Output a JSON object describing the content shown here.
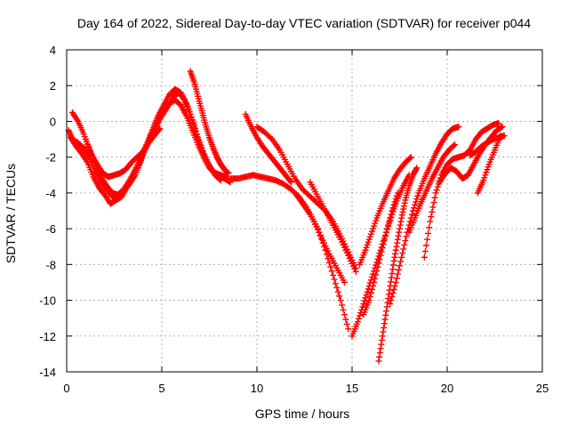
{
  "chart_data": {
    "type": "scatter",
    "title": "Day 164 of 2022, Sidereal Day-to-day VTEC variation (SDTVAR) for receiver p044",
    "xlabel": "GPS time / hours",
    "ylabel": "SDTVAR / TECUs",
    "xlim": [
      0,
      25
    ],
    "ylim": [
      -14,
      4
    ],
    "xticks": [
      0,
      5,
      10,
      15,
      20,
      25
    ],
    "yticks": [
      -14,
      -12,
      -10,
      -8,
      -6,
      -4,
      -2,
      0,
      2,
      4
    ],
    "grid": true,
    "marker": "plus",
    "color": "#ff0000",
    "series": [
      {
        "x": [
          0.1,
          0.3,
          0.6,
          0.9,
          1.2,
          1.5,
          1.8,
          2.1,
          2.4,
          2.7,
          3.0,
          3.3,
          3.6,
          3.9,
          4.2,
          4.5,
          4.8,
          5.1,
          5.4,
          5.7,
          6.0,
          6.3,
          6.6,
          6.9,
          7.2,
          7.5,
          7.8,
          8.1,
          8.4
        ],
        "y": [
          -0.5,
          -1.0,
          -1.2,
          -1.5,
          -2.0,
          -2.8,
          -3.4,
          -3.8,
          -4.2,
          -4.3,
          -3.9,
          -3.5,
          -3.0,
          -2.2,
          -1.3,
          -0.6,
          0.2,
          0.6,
          1.0,
          1.2,
          0.9,
          0.3,
          -0.5,
          -1.3,
          -2.0,
          -2.6,
          -2.9,
          -3.0,
          -3.1
        ]
      },
      {
        "x": [
          0.2,
          0.5,
          0.8,
          1.1,
          1.4,
          1.7,
          2.0,
          2.3,
          2.6,
          2.9,
          3.2,
          3.5,
          3.8,
          4.1,
          4.4,
          4.7,
          5.0,
          5.3,
          5.6,
          5.9,
          6.2,
          6.5,
          6.8,
          7.1,
          7.4,
          7.7,
          8.0,
          8.3,
          8.6
        ],
        "y": [
          -0.9,
          -1.4,
          -1.8,
          -2.3,
          -3.1,
          -3.7,
          -4.1,
          -4.6,
          -4.4,
          -4.2,
          -3.6,
          -3.1,
          -2.4,
          -1.6,
          -1.0,
          -0.3,
          0.3,
          0.8,
          1.4,
          1.6,
          1.2,
          0.4,
          -0.7,
          -1.6,
          -2.3,
          -2.8,
          -3.0,
          -3.2,
          -3.4
        ]
      },
      {
        "x": [
          0.3,
          0.6,
          0.9,
          1.2,
          1.5,
          1.8,
          2.1,
          2.4,
          2.7,
          3.0,
          3.3,
          3.6,
          3.9,
          4.2,
          4.5,
          4.8,
          5.1,
          5.4,
          5.7,
          6.0,
          6.3,
          6.6,
          6.9,
          7.2,
          7.5,
          7.8,
          8.1
        ],
        "y": [
          0.5,
          0.0,
          -0.7,
          -1.6,
          -2.4,
          -3.1,
          -3.6,
          -4.0,
          -4.1,
          -3.8,
          -3.3,
          -2.7,
          -2.1,
          -1.3,
          -0.5,
          0.3,
          0.9,
          1.5,
          1.8,
          1.6,
          1.0,
          0.1,
          -0.9,
          -1.8,
          -2.5,
          -3.0,
          -3.3
        ]
      },
      {
        "x": [
          1.0,
          1.3,
          1.6,
          1.9,
          2.2,
          2.5,
          2.8,
          3.1,
          3.4,
          3.7,
          4.0,
          4.3,
          4.6,
          4.9
        ],
        "y": [
          -1.0,
          -1.8,
          -2.4,
          -2.9,
          -3.1,
          -3.0,
          -2.9,
          -2.7,
          -2.3,
          -2.0,
          -1.7,
          -1.2,
          -0.8,
          -0.4
        ]
      },
      {
        "x": [
          6.5,
          6.7,
          6.9,
          7.1,
          7.3,
          7.5,
          7.7,
          7.9,
          8.1,
          8.3,
          8.5
        ],
        "y": [
          2.8,
          2.2,
          1.4,
          0.6,
          -0.2,
          -0.9,
          -1.5,
          -2.0,
          -2.4,
          -2.7,
          -2.9
        ]
      },
      {
        "x": [
          8.6,
          9.0,
          9.4,
          9.8,
          10.2,
          10.6,
          11.0,
          11.4,
          11.8,
          12.2,
          12.6,
          13.0,
          13.4,
          13.8,
          14.2,
          14.6
        ],
        "y": [
          -3.2,
          -3.2,
          -3.1,
          -3.0,
          -3.1,
          -3.2,
          -3.3,
          -3.5,
          -3.8,
          -4.2,
          -4.8,
          -5.6,
          -6.5,
          -7.4,
          -8.2,
          -9.0
        ]
      },
      {
        "x": [
          9.4,
          9.7,
          10.0,
          10.3,
          10.6,
          10.9,
          11.2,
          11.5,
          11.8
        ],
        "y": [
          0.4,
          -0.3,
          -0.9,
          -1.4,
          -1.8,
          -2.2,
          -2.6,
          -3.0,
          -3.4
        ]
      },
      {
        "x": [
          10.0,
          10.4,
          10.8,
          11.2,
          11.6,
          12.0,
          12.4,
          12.8,
          13.2,
          13.6,
          14.0,
          14.4,
          14.8,
          15.2
        ],
        "y": [
          -0.3,
          -0.6,
          -1.0,
          -1.6,
          -2.4,
          -3.2,
          -3.8,
          -4.2,
          -4.6,
          -5.0,
          -5.6,
          -6.4,
          -7.3,
          -8.2
        ]
      },
      {
        "x": [
          12.0,
          12.4,
          12.8,
          13.2,
          13.6,
          14.0,
          14.4,
          14.8
        ],
        "y": [
          -4.0,
          -4.6,
          -5.2,
          -6.0,
          -7.2,
          -8.6,
          -10.0,
          -11.6
        ]
      },
      {
        "x": [
          12.8,
          13.2,
          13.6,
          14.0,
          14.4,
          14.8,
          15.2
        ],
        "y": [
          -3.4,
          -4.2,
          -5.0,
          -5.8,
          -6.6,
          -7.5,
          -8.4
        ]
      },
      {
        "x": [
          15.0,
          15.3,
          15.6,
          15.9,
          16.2,
          16.5,
          16.8,
          17.1,
          17.4,
          17.7,
          18.0
        ],
        "y": [
          -12.0,
          -11.2,
          -10.2,
          -9.2,
          -8.2,
          -7.2,
          -6.2,
          -5.2,
          -4.3,
          -3.6,
          -3.0
        ]
      },
      {
        "x": [
          15.4,
          15.7,
          16.0,
          16.3,
          16.6,
          16.9,
          17.2,
          17.5,
          17.8,
          18.1
        ],
        "y": [
          -8.0,
          -7.2,
          -6.3,
          -5.4,
          -4.6,
          -3.9,
          -3.2,
          -2.7,
          -2.3,
          -2.0
        ]
      },
      {
        "x": [
          15.6,
          15.9,
          16.2,
          16.5,
          16.8,
          17.1,
          17.4
        ],
        "y": [
          -10.8,
          -10.0,
          -8.8,
          -7.5,
          -6.2,
          -5.0,
          -4.0
        ]
      },
      {
        "x": [
          16.4,
          16.6,
          16.8,
          17.0,
          17.2,
          17.4,
          17.6,
          17.8,
          18.0,
          18.2,
          18.4
        ],
        "y": [
          -13.4,
          -12.0,
          -10.6,
          -9.2,
          -7.8,
          -6.6,
          -5.4,
          -4.4,
          -3.6,
          -3.0,
          -2.6
        ]
      },
      {
        "x": [
          17.0,
          17.3,
          17.6,
          17.9,
          18.2,
          18.5,
          18.8,
          19.1,
          19.4,
          19.7,
          20.0,
          20.3,
          20.6
        ],
        "y": [
          -10.2,
          -9.0,
          -7.6,
          -6.2,
          -5.0,
          -4.0,
          -3.2,
          -2.5,
          -1.8,
          -1.2,
          -0.7,
          -0.4,
          -0.3
        ]
      },
      {
        "x": [
          18.0,
          18.3,
          18.6,
          18.9,
          19.2,
          19.5,
          19.8,
          20.1,
          20.4
        ],
        "y": [
          -6.2,
          -5.4,
          -4.6,
          -3.9,
          -3.2,
          -2.6,
          -2.0,
          -1.6,
          -1.3
        ]
      },
      {
        "x": [
          18.8,
          19.1,
          19.4,
          19.7,
          20.0,
          20.3,
          20.6,
          20.9,
          21.2,
          21.5,
          21.8,
          22.1,
          22.4,
          22.7
        ],
        "y": [
          -7.6,
          -5.6,
          -4.0,
          -3.0,
          -2.4,
          -2.1,
          -2.0,
          -1.9,
          -1.6,
          -1.0,
          -0.6,
          -0.4,
          -0.2,
          -0.1
        ]
      },
      {
        "x": [
          19.6,
          19.9,
          20.2,
          20.5,
          20.8,
          21.1,
          21.4,
          21.7,
          22.0,
          22.3,
          22.6,
          22.9
        ],
        "y": [
          -3.4,
          -2.9,
          -2.6,
          -2.8,
          -3.2,
          -3.0,
          -2.4,
          -1.8,
          -1.3,
          -0.9,
          -0.5,
          -0.3
        ]
      },
      {
        "x": [
          21.2,
          21.5,
          21.8,
          22.1,
          22.4,
          22.7,
          23.0
        ],
        "y": [
          -1.9,
          -1.7,
          -1.4,
          -1.2,
          -1.0,
          -0.9,
          -0.8
        ]
      },
      {
        "x": [
          21.6,
          21.9,
          22.2,
          22.5,
          22.8
        ],
        "y": [
          -4.0,
          -3.3,
          -2.4,
          -1.6,
          -0.8
        ]
      }
    ]
  }
}
